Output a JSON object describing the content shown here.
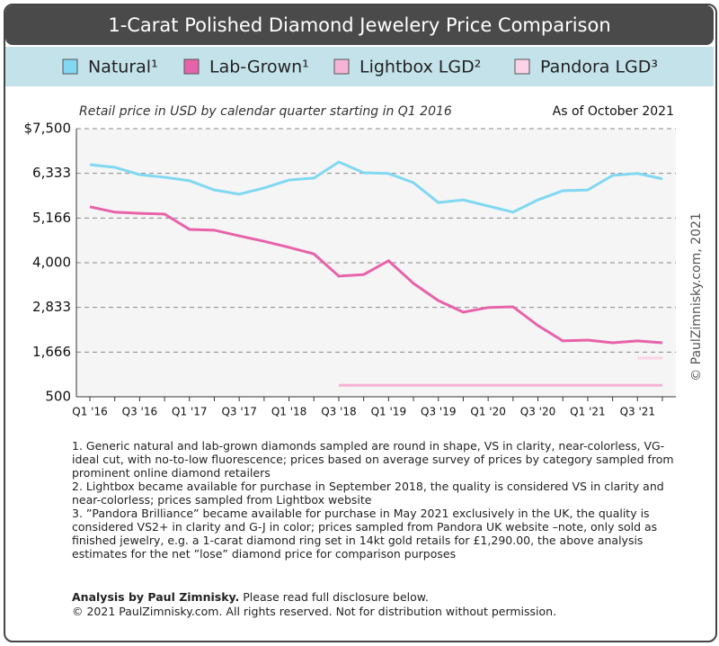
{
  "chart_data": {
    "type": "line",
    "title": "1-Carat Polished Diamond Jewelery Price Comparison",
    "subtitle": "Retail price in USD by calendar quarter starting in Q1 2016",
    "as_of": "As of October 2021",
    "watermark": "© PaulZimnisky.com, 2021",
    "categories": [
      "Q1 '16",
      null,
      "Q3 '16",
      null,
      "Q1 '17",
      null,
      "Q3 '17",
      null,
      "Q1 '18",
      null,
      "Q3 '18",
      null,
      "Q1 '19",
      null,
      "Q3 '19",
      null,
      "Q1 '20",
      null,
      "Q3 '20",
      null,
      "Q1 '21",
      null,
      "Q3 '21",
      null
    ],
    "series": [
      {
        "name": "Natural¹",
        "color": "#80d8f2",
        "values": [
          6560,
          6490,
          6300,
          6230,
          6140,
          5900,
          5790,
          5950,
          6160,
          6210,
          6630,
          6350,
          6330,
          6090,
          5570,
          5640,
          5480,
          5320,
          5640,
          5880,
          5900,
          6280,
          6330,
          6190
        ]
      },
      {
        "name": "Lab-Grown¹",
        "color": "#e862aa",
        "values": [
          5460,
          5320,
          5290,
          5270,
          4870,
          4850,
          4700,
          4560,
          4400,
          4230,
          3650,
          3690,
          4050,
          3460,
          3010,
          2710,
          2830,
          2850,
          2360,
          1960,
          1980,
          1910,
          1960,
          1910
        ]
      },
      {
        "name": "Lightbox LGD²",
        "color": "#f7b3d6",
        "values": [
          null,
          null,
          null,
          null,
          null,
          null,
          null,
          null,
          null,
          null,
          800,
          800,
          800,
          800,
          800,
          800,
          800,
          800,
          800,
          800,
          800,
          800,
          800,
          800
        ]
      },
      {
        "name": "Pandora LGD³",
        "color": "#fbd3e6",
        "values": [
          null,
          null,
          null,
          null,
          null,
          null,
          null,
          null,
          null,
          null,
          null,
          null,
          null,
          null,
          null,
          null,
          null,
          null,
          null,
          null,
          null,
          null,
          1510,
          1510
        ]
      }
    ],
    "ylim": [
      500,
      7500
    ],
    "yticks": [
      500,
      {
        "value": 1666,
        "label": "1,666"
      },
      {
        "value": 2833,
        "label": "2,833"
      },
      {
        "value": 4000,
        "label": "4,000"
      },
      {
        "value": 5166,
        "label": "5,166"
      },
      {
        "value": 6333,
        "label": "6,333"
      },
      {
        "value": 7500,
        "label": "$7,500"
      }
    ],
    "grid": true,
    "footnotes": [
      "1. Generic natural and lab-grown diamonds sampled are round in shape, VS in clarity, near-colorless, VG-ideal cut, with no-to-low fluorescence; prices based on average survey of prices by category sampled from prominent online diamond retailers",
      "2. Lightbox became available for purchase in September 2018, the quality is considered VS in clarity and near-colorless; prices sampled from Lightbox website",
      "3. ”Pandora Brilliance” became available for purchase in May 2021 exclusively in the UK, the quality is considered VS2+ in clarity and G-J in color; prices sampled from Pandora UK website –note, only sold as finished jewelry, e.g. a 1-carat diamond ring set in 14kt gold retails for £1,290.00, the above analysis estimates for the net ”lose” diamond price for comparison purposes"
    ],
    "credits": {
      "author": "Analysis by Paul Zimnisky.",
      "disclosure": "Please read full disclosure below.",
      "copyright": "© 2021 PaulZimnisky.com. All rights reserved. Not for distribution without permission."
    }
  }
}
